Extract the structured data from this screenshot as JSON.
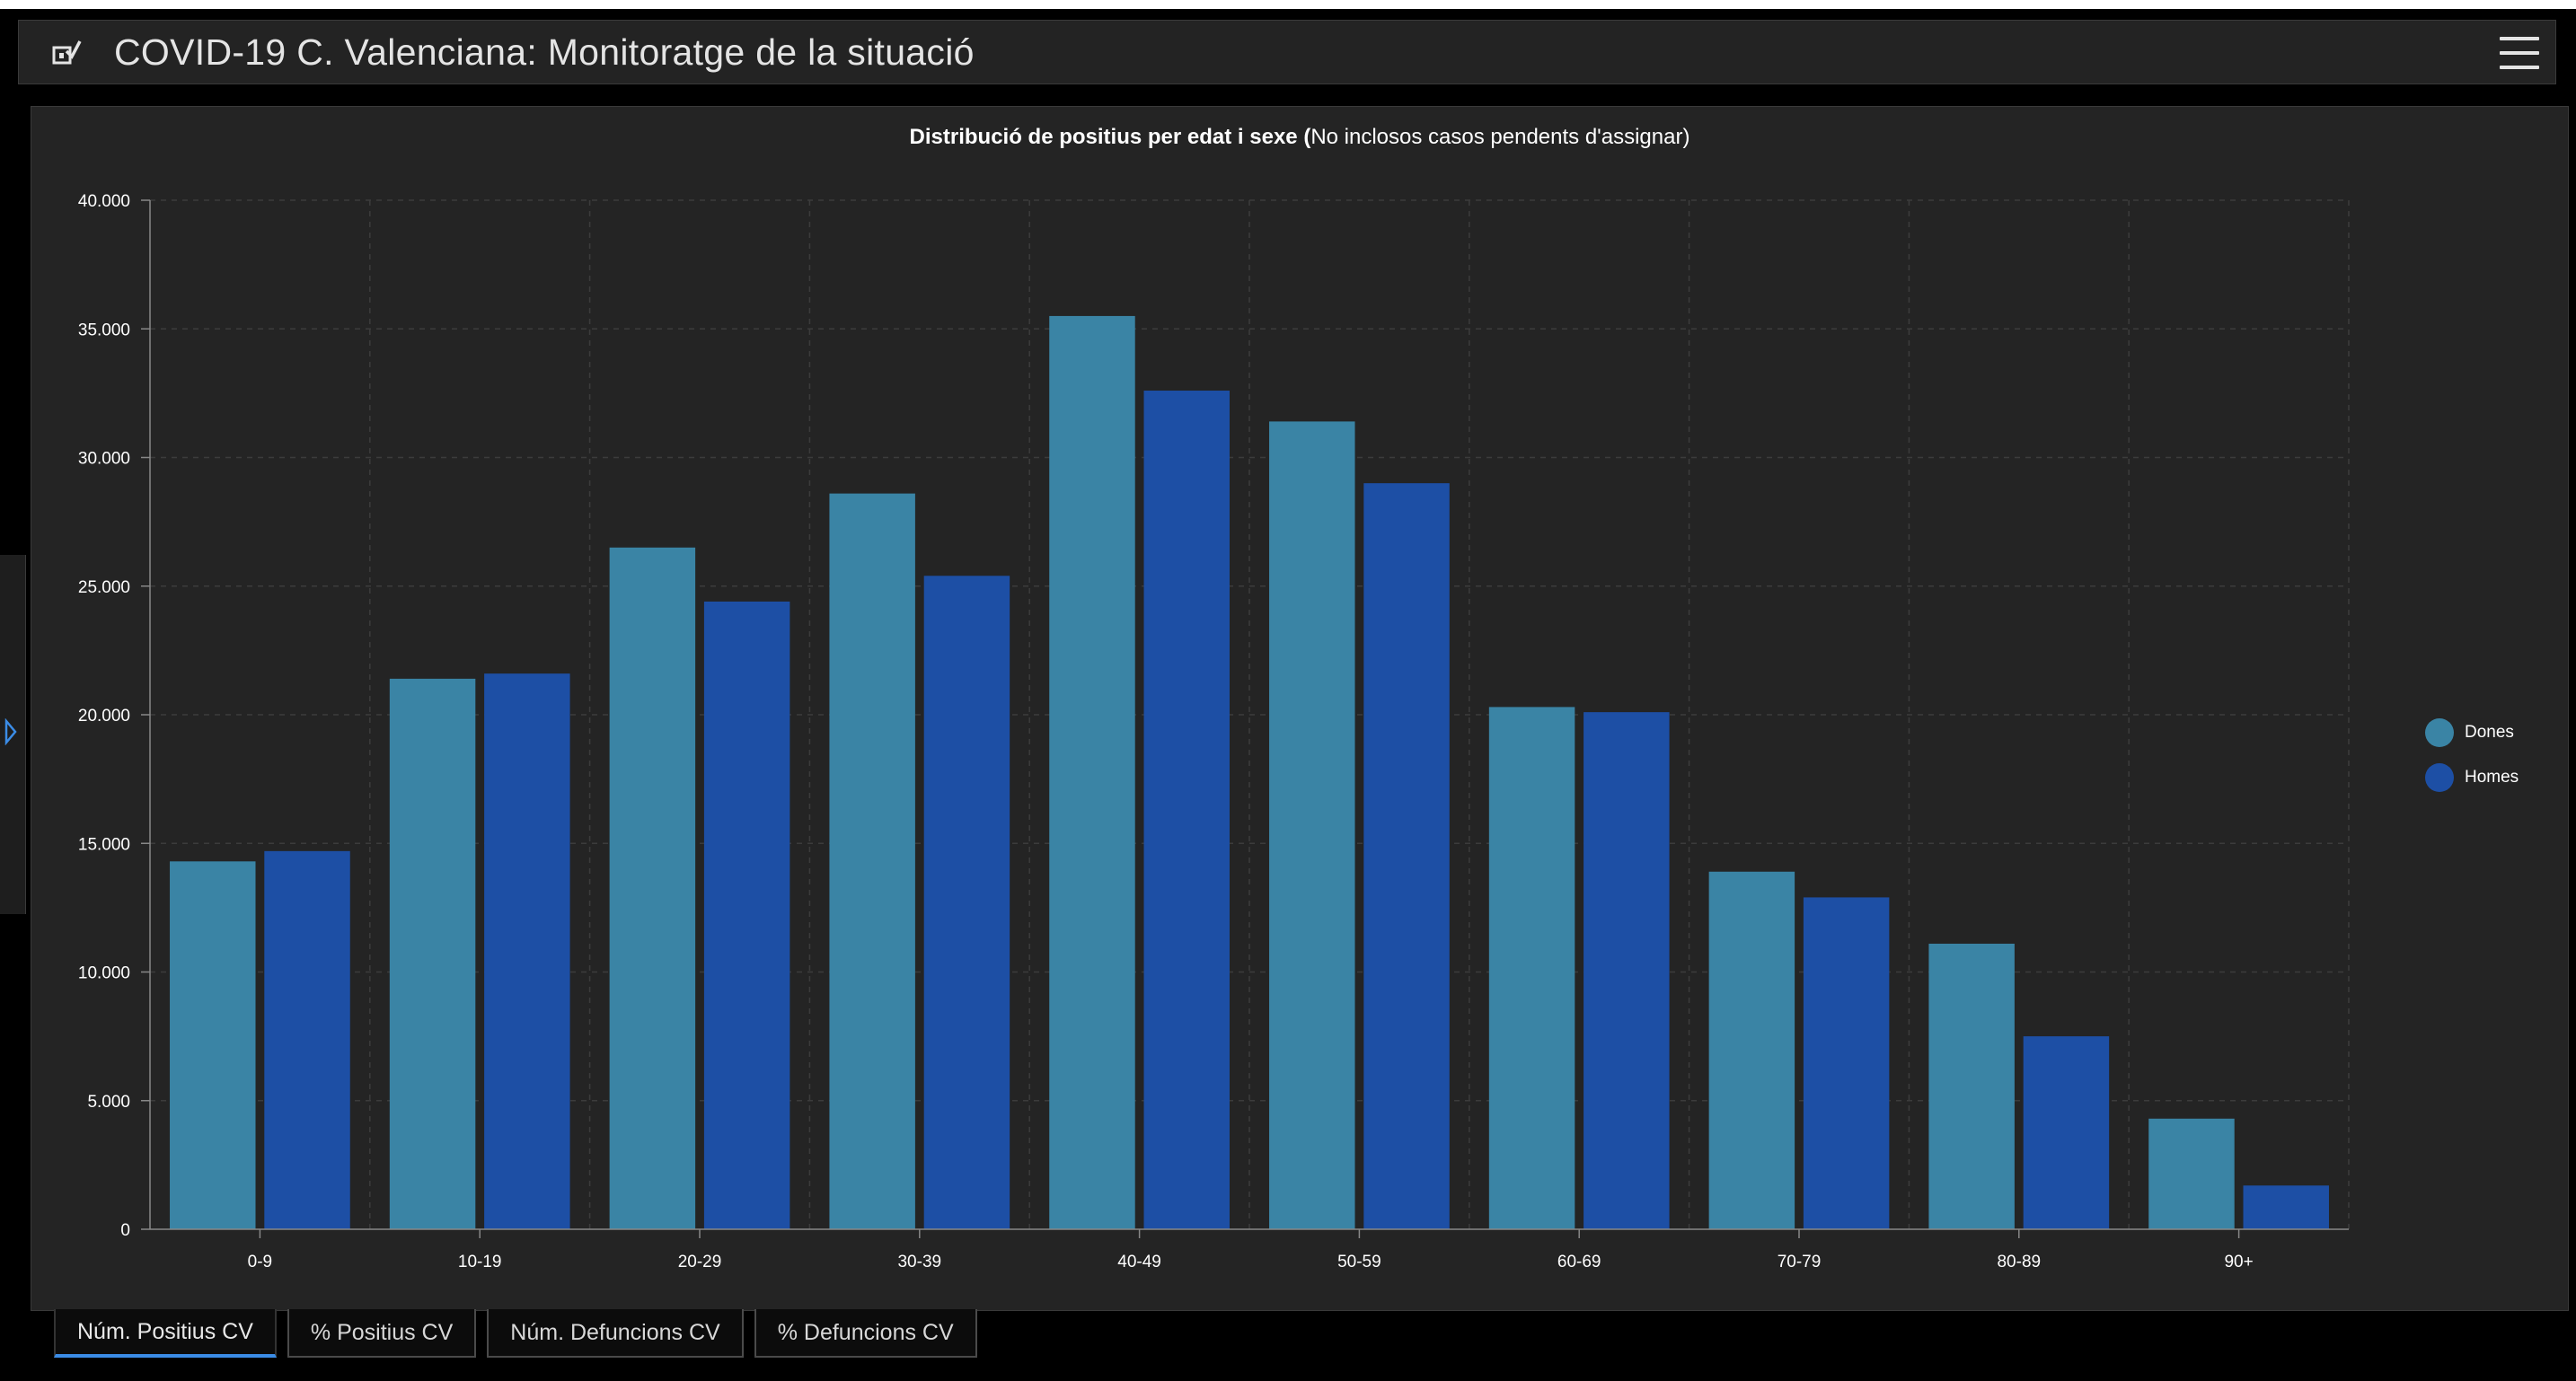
{
  "header": {
    "title": "COVID-19 C. Valenciana: Monitoratge de la situació",
    "app_icon": "chart-check-icon",
    "menu_icon": "hamburger-menu-icon"
  },
  "sidebar_toggle_icon": "caret-right-icon",
  "chart_title": {
    "bold": "Distribució de positius per edat i sexe (",
    "normal": "No inclosos casos pendents d'assignar)"
  },
  "chart_data": {
    "type": "bar",
    "title": "Distribució de positius per edat i sexe (No inclosos casos pendents d'assignar)",
    "categories": [
      "0-9",
      "10-19",
      "20-29",
      "30-39",
      "40-49",
      "50-59",
      "60-69",
      "70-79",
      "80-89",
      "90+"
    ],
    "series": [
      {
        "name": "Dones",
        "color": "#3a84a5",
        "values": [
          14300,
          21400,
          26500,
          28600,
          35500,
          31400,
          20300,
          13900,
          11100,
          4300
        ]
      },
      {
        "name": "Homes",
        "color": "#1d4fa5",
        "values": [
          14700,
          21600,
          24400,
          25400,
          32600,
          29000,
          20100,
          12900,
          7500,
          1700
        ]
      }
    ],
    "ylim": [
      0,
      40000
    ],
    "yticks": [
      0,
      5000,
      10000,
      15000,
      20000,
      25000,
      30000,
      35000,
      40000
    ],
    "ytick_labels": [
      "0",
      "5.000",
      "10.000",
      "15.000",
      "20.000",
      "25.000",
      "30.000",
      "35.000",
      "40.000"
    ],
    "grid": true,
    "legend_position": "right"
  },
  "legend": [
    {
      "label": "Dones",
      "color": "#3a84a5"
    },
    {
      "label": "Homes",
      "color": "#1d4fa5"
    }
  ],
  "tabs": [
    {
      "label": "Núm. Positius CV",
      "active": true
    },
    {
      "label": "% Positius CV",
      "active": false
    },
    {
      "label": "Núm. Defuncions CV",
      "active": false
    },
    {
      "label": "% Defuncions CV",
      "active": false
    }
  ]
}
